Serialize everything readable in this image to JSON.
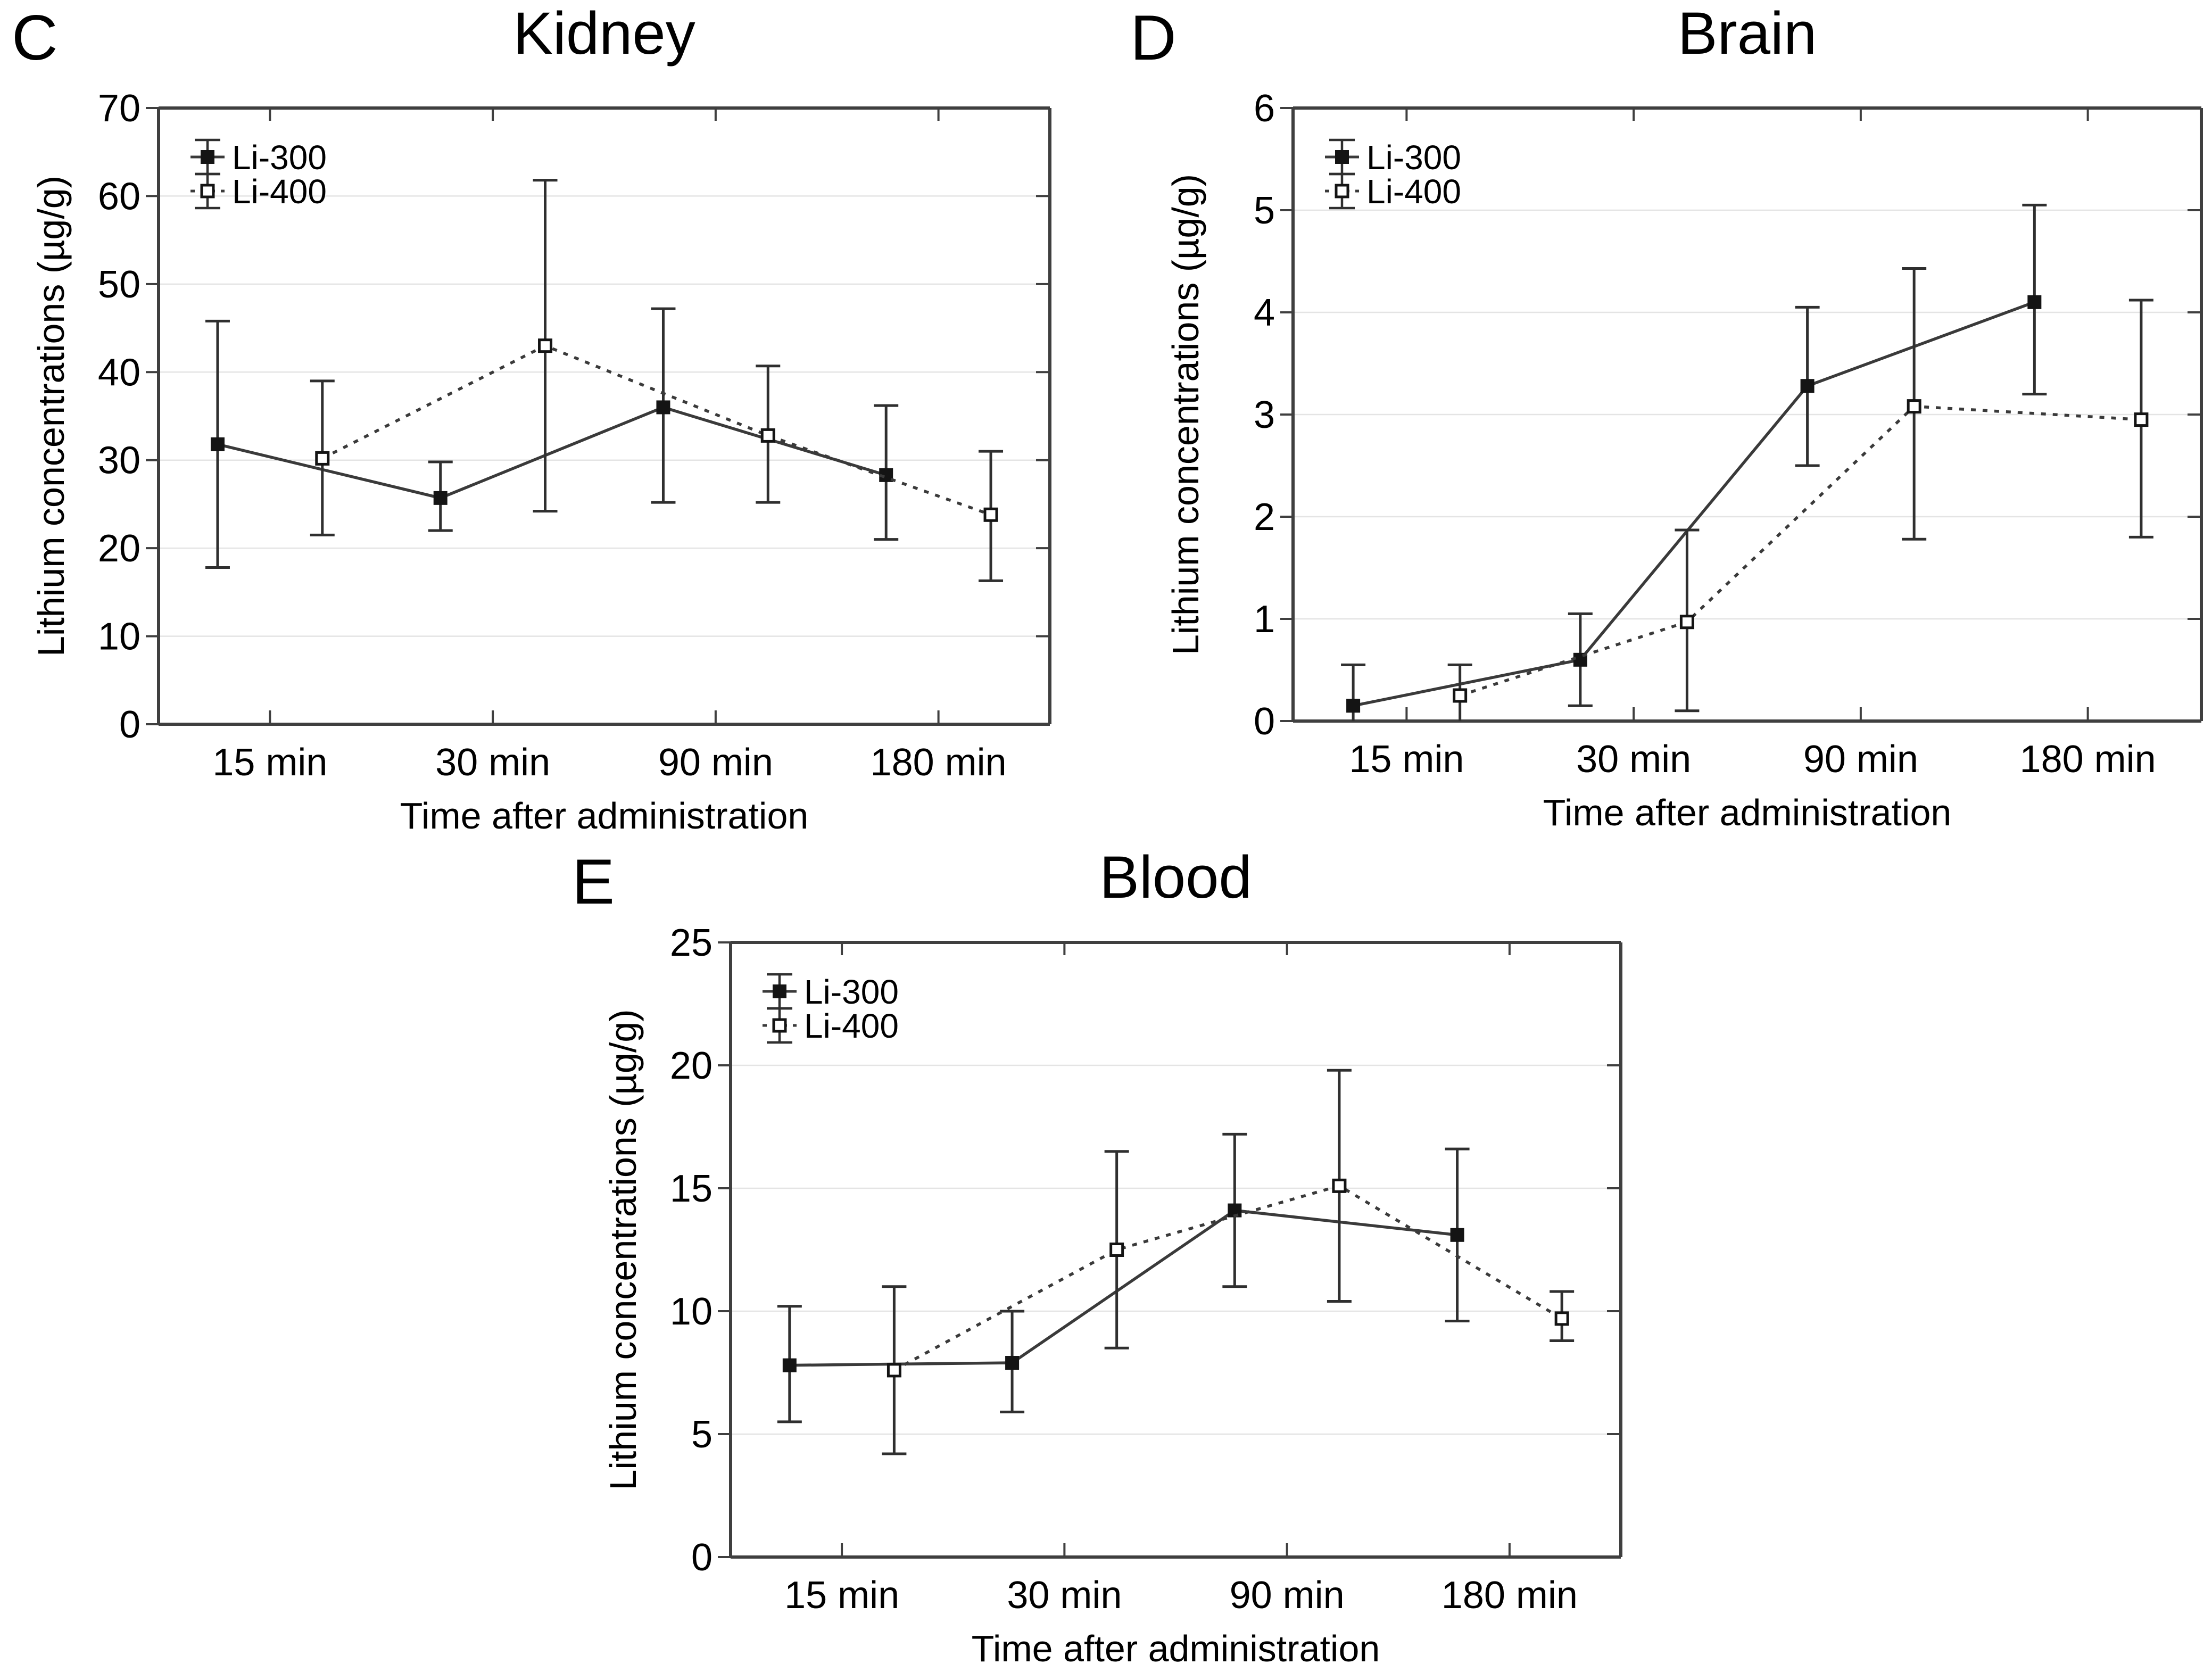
{
  "figure": {
    "colors": {
      "background": "#ffffff",
      "text": "#000000",
      "axis": "#3f3f3f",
      "grid": "#e4e4e4",
      "series_line": "#3a3a3a",
      "error_bar": "#2f2f2f",
      "marker_fill": "#141414",
      "open_marker_fill": "#ffffff"
    }
  },
  "legend": {
    "items": [
      {
        "label": "Li-300",
        "marker": "filled-square",
        "line": "solid"
      },
      {
        "label": "Li-400",
        "marker": "open-square",
        "line": "dotted"
      }
    ],
    "position": "top-left"
  },
  "chart_data": [
    {
      "panel_letter": "C",
      "title": "Kidney",
      "type": "line",
      "categories": [
        "15 min",
        "30 min",
        "90 min",
        "180 min"
      ],
      "xlabel": "Time after administration",
      "ylabel": "Lithium concentrations (µg/g)",
      "ylim": [
        0,
        70
      ],
      "yticks": [
        0,
        10,
        20,
        30,
        40,
        50,
        60,
        70
      ],
      "grid": "horizontal",
      "legend_position": "top-left",
      "series": [
        {
          "name": "Li-300",
          "values": [
            31.8,
            25.7,
            36.0,
            28.3
          ],
          "err_lo": [
            17.8,
            22.0,
            25.2,
            21.0
          ],
          "err_hi": [
            45.8,
            29.8,
            47.2,
            36.2
          ]
        },
        {
          "name": "Li-400",
          "values": [
            30.2,
            43.0,
            32.8,
            23.8
          ],
          "err_lo": [
            21.5,
            24.2,
            25.2,
            16.3
          ],
          "err_hi": [
            39.0,
            61.8,
            40.7,
            31.0
          ]
        }
      ]
    },
    {
      "panel_letter": "D",
      "title": "Brain",
      "type": "line",
      "categories": [
        "15 min",
        "30 min",
        "90 min",
        "180 min"
      ],
      "xlabel": "Time after administration",
      "ylabel": "Lithium concentrations (µg/g)",
      "ylim": [
        0,
        6
      ],
      "yticks": [
        0,
        1,
        2,
        3,
        4,
        5,
        6
      ],
      "grid": "horizontal",
      "legend_position": "top-left",
      "series": [
        {
          "name": "Li-300",
          "values": [
            0.15,
            0.6,
            3.28,
            4.1
          ],
          "err_lo": [
            -0.25,
            0.15,
            2.5,
            3.2
          ],
          "err_hi": [
            0.55,
            1.05,
            4.05,
            5.05
          ]
        },
        {
          "name": "Li-400",
          "values": [
            0.25,
            0.97,
            3.08,
            2.95
          ],
          "err_lo": [
            -0.3,
            0.1,
            1.78,
            1.8
          ],
          "err_hi": [
            0.55,
            1.87,
            4.43,
            4.12
          ]
        }
      ]
    },
    {
      "panel_letter": "E",
      "title": "Blood",
      "type": "line",
      "categories": [
        "15 min",
        "30 min",
        "90 min",
        "180 min"
      ],
      "xlabel": "Time after administration",
      "ylabel": "Lithium concentrations (µg/g)",
      "ylim": [
        0,
        25
      ],
      "yticks": [
        0,
        5,
        10,
        15,
        20,
        25
      ],
      "grid": "horizontal",
      "legend_position": "top-left",
      "series": [
        {
          "name": "Li-300",
          "values": [
            7.8,
            7.9,
            14.1,
            13.1
          ],
          "err_lo": [
            5.5,
            5.9,
            11.0,
            9.6
          ],
          "err_hi": [
            10.2,
            10.0,
            17.2,
            16.6
          ]
        },
        {
          "name": "Li-400",
          "values": [
            7.6,
            12.5,
            15.1,
            9.7
          ],
          "err_lo": [
            4.2,
            8.5,
            10.4,
            8.8
          ],
          "err_hi": [
            11.0,
            16.5,
            19.8,
            10.8
          ]
        }
      ]
    }
  ]
}
